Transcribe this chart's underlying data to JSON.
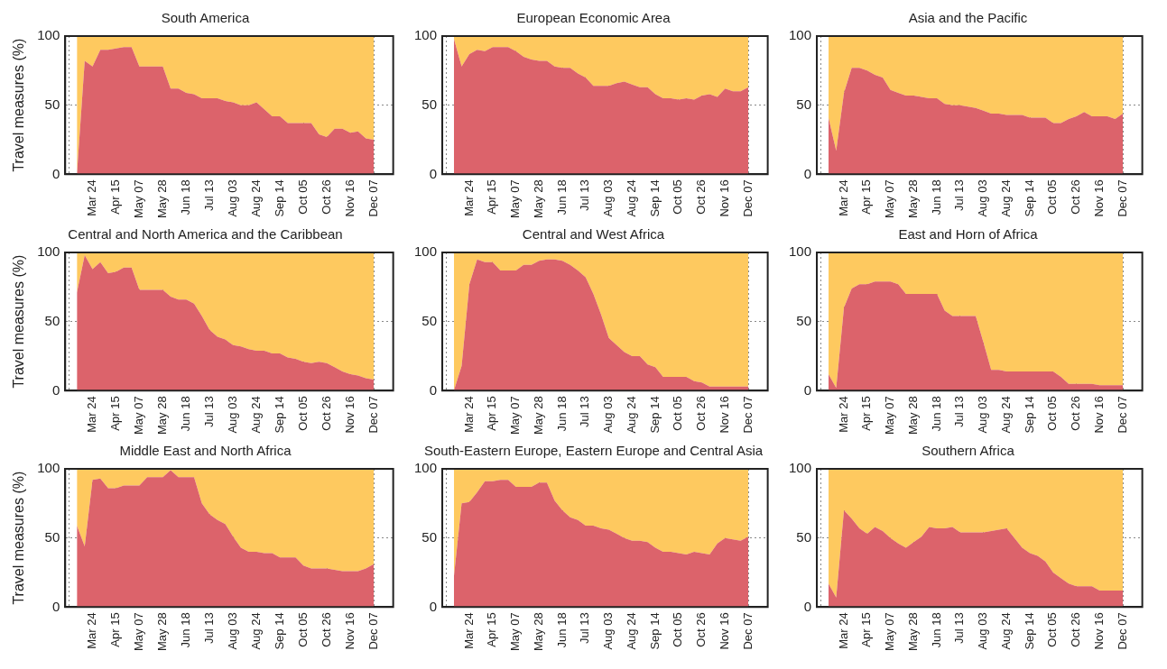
{
  "chart_data": [
    {
      "type": "area",
      "title": "South America",
      "ylabel": "Travel measures (%)",
      "stacked": true,
      "grid": true,
      "ylim": [
        0,
        100
      ],
      "yticks": [
        0,
        50,
        100
      ],
      "categories": [
        null,
        null,
        null,
        "Mar 24",
        null,
        null,
        "Apr 15",
        null,
        null,
        "May 07",
        null,
        null,
        "May 28",
        null,
        null,
        "Jun 18",
        null,
        null,
        "Jul 13",
        null,
        null,
        "Aug 03",
        null,
        null,
        "Aug 24",
        null,
        null,
        "Sep 14",
        null,
        null,
        "Oct 05",
        null,
        null,
        "Oct 26",
        null,
        null,
        "Nov 16",
        null,
        null,
        "Dec 07",
        null,
        null
      ],
      "series": [
        {
          "color": "#dc636b",
          "values": [
            null,
            0,
            82,
            78,
            90,
            90,
            91,
            92,
            92,
            78,
            78,
            78,
            78,
            62,
            62,
            59,
            58,
            55,
            55,
            55,
            53,
            52,
            50,
            50,
            52,
            47,
            42,
            42,
            37,
            37,
            37,
            37,
            29,
            27,
            33,
            33,
            30,
            31,
            26,
            25,
            null,
            null
          ]
        },
        {
          "color": "#fec95f",
          "values": [
            null,
            100,
            18,
            22,
            10,
            10,
            9,
            8,
            8,
            22,
            22,
            22,
            22,
            38,
            38,
            41,
            42,
            45,
            45,
            45,
            47,
            48,
            50,
            50,
            48,
            53,
            58,
            58,
            63,
            63,
            63,
            63,
            71,
            73,
            67,
            67,
            70,
            69,
            74,
            75,
            null,
            null
          ]
        }
      ]
    },
    {
      "type": "area",
      "title": "European Economic Area",
      "stacked": true,
      "grid": true,
      "ylim": [
        0,
        100
      ],
      "yticks": [
        0,
        50,
        100
      ],
      "categories": [
        null,
        null,
        null,
        "Mar 24",
        null,
        null,
        "Apr 15",
        null,
        null,
        "May 07",
        null,
        null,
        "May 28",
        null,
        null,
        "Jun 18",
        null,
        null,
        "Jul 13",
        null,
        null,
        "Aug 03",
        null,
        null,
        "Aug 24",
        null,
        null,
        "Sep 14",
        null,
        null,
        "Oct 05",
        null,
        null,
        "Oct 26",
        null,
        null,
        "Nov 16",
        null,
        null,
        "Dec 07",
        null,
        null
      ],
      "series": [
        {
          "color": "#dc636b",
          "values": [
            null,
            98,
            78,
            87,
            90,
            89,
            92,
            92,
            92,
            89,
            85,
            83,
            82,
            82,
            78,
            77,
            77,
            73,
            70,
            64,
            64,
            64,
            66,
            67,
            65,
            63,
            63,
            58,
            55,
            55,
            54,
            55,
            54,
            57,
            58,
            56,
            62,
            60,
            60,
            63,
            null,
            null
          ]
        },
        {
          "color": "#fec95f",
          "values": [
            null,
            2,
            22,
            13,
            10,
            11,
            8,
            8,
            8,
            11,
            15,
            17,
            18,
            18,
            22,
            23,
            23,
            27,
            30,
            36,
            36,
            36,
            34,
            33,
            35,
            37,
            37,
            42,
            45,
            45,
            46,
            45,
            46,
            43,
            42,
            44,
            38,
            40,
            40,
            37,
            null,
            null
          ]
        }
      ]
    },
    {
      "type": "area",
      "title": "Asia and the Pacific",
      "stacked": true,
      "grid": true,
      "ylim": [
        0,
        100
      ],
      "yticks": [
        0,
        50,
        100
      ],
      "categories": [
        null,
        null,
        null,
        "Mar 24",
        null,
        null,
        "Apr 15",
        null,
        null,
        "May 07",
        null,
        null,
        "May 28",
        null,
        null,
        "Jun 18",
        null,
        null,
        "Jul 13",
        null,
        null,
        "Aug 03",
        null,
        null,
        "Aug 24",
        null,
        null,
        "Sep 14",
        null,
        null,
        "Oct 05",
        null,
        null,
        "Oct 26",
        null,
        null,
        "Nov 16",
        null,
        null,
        "Dec 07",
        null,
        null
      ],
      "series": [
        {
          "color": "#dc636b",
          "values": [
            null,
            41,
            17,
            59,
            77,
            77,
            75,
            72,
            70,
            61,
            59,
            57,
            57,
            56,
            55,
            55,
            51,
            50,
            50,
            49,
            48,
            46,
            44,
            44,
            43,
            43,
            43,
            41,
            41,
            41,
            37,
            37,
            40,
            42,
            45,
            42,
            42,
            42,
            40,
            44,
            null,
            null
          ]
        },
        {
          "color": "#fec95f",
          "values": [
            null,
            59,
            83,
            41,
            23,
            23,
            25,
            28,
            30,
            39,
            41,
            43,
            43,
            44,
            45,
            45,
            49,
            50,
            50,
            51,
            52,
            54,
            56,
            56,
            57,
            57,
            57,
            59,
            59,
            59,
            63,
            63,
            60,
            58,
            55,
            58,
            58,
            58,
            60,
            56,
            null,
            null
          ]
        }
      ]
    },
    {
      "type": "area",
      "title": "Central and North America and the Caribbean",
      "ylabel": "Travel measures (%)",
      "stacked": true,
      "grid": true,
      "ylim": [
        0,
        100
      ],
      "yticks": [
        0,
        50,
        100
      ],
      "categories": [
        null,
        null,
        null,
        "Mar 24",
        null,
        null,
        "Apr 15",
        null,
        null,
        "May 07",
        null,
        null,
        "May 28",
        null,
        null,
        "Jun 18",
        null,
        null,
        "Jul 13",
        null,
        null,
        "Aug 03",
        null,
        null,
        "Aug 24",
        null,
        null,
        "Sep 14",
        null,
        null,
        "Oct 05",
        null,
        null,
        "Oct 26",
        null,
        null,
        "Nov 16",
        null,
        null,
        "Dec 07",
        null,
        null
      ],
      "series": [
        {
          "color": "#dc636b",
          "values": [
            null,
            71,
            98,
            88,
            93,
            85,
            86,
            89,
            89,
            73,
            73,
            73,
            73,
            68,
            66,
            66,
            63,
            54,
            44,
            39,
            37,
            33,
            32,
            30,
            29,
            29,
            27,
            27,
            24,
            23,
            21,
            20,
            21,
            20,
            17,
            14,
            12,
            11,
            9,
            8,
            null,
            null
          ]
        },
        {
          "color": "#fec95f",
          "values": [
            null,
            29,
            2,
            12,
            7,
            15,
            14,
            11,
            11,
            27,
            27,
            27,
            27,
            32,
            34,
            34,
            37,
            46,
            56,
            61,
            63,
            67,
            68,
            70,
            71,
            71,
            73,
            73,
            76,
            77,
            79,
            80,
            79,
            80,
            83,
            86,
            88,
            89,
            91,
            92,
            null,
            null
          ]
        }
      ]
    },
    {
      "type": "area",
      "title": "Central and West Africa",
      "stacked": true,
      "grid": true,
      "ylim": [
        0,
        100
      ],
      "yticks": [
        0,
        50,
        100
      ],
      "categories": [
        null,
        null,
        null,
        "Mar 24",
        null,
        null,
        "Apr 15",
        null,
        null,
        "May 07",
        null,
        null,
        "May 28",
        null,
        null,
        "Jun 18",
        null,
        null,
        "Jul 13",
        null,
        null,
        "Aug 03",
        null,
        null,
        "Aug 24",
        null,
        null,
        "Sep 14",
        null,
        null,
        "Oct 05",
        null,
        null,
        "Oct 26",
        null,
        null,
        "Nov 16",
        null,
        null,
        "Dec 07",
        null,
        null
      ],
      "series": [
        {
          "color": "#dc636b",
          "values": [
            null,
            0,
            18,
            77,
            95,
            93,
            93,
            87,
            87,
            87,
            91,
            91,
            94,
            95,
            95,
            94,
            91,
            87,
            82,
            70,
            55,
            38,
            33,
            28,
            25,
            25,
            19,
            17,
            10,
            10,
            10,
            10,
            7,
            6,
            3,
            3,
            3,
            3,
            3,
            3,
            null,
            null
          ]
        },
        {
          "color": "#fec95f",
          "values": [
            null,
            100,
            82,
            23,
            5,
            7,
            7,
            13,
            13,
            13,
            9,
            9,
            6,
            5,
            5,
            6,
            9,
            13,
            18,
            30,
            45,
            62,
            67,
            72,
            75,
            75,
            81,
            83,
            90,
            90,
            90,
            90,
            93,
            94,
            97,
            97,
            97,
            97,
            97,
            97,
            null,
            null
          ]
        }
      ]
    },
    {
      "type": "area",
      "title": "East and Horn of Africa",
      "stacked": true,
      "grid": true,
      "ylim": [
        0,
        100
      ],
      "yticks": [
        0,
        50,
        100
      ],
      "categories": [
        null,
        null,
        null,
        "Mar 24",
        null,
        null,
        "Apr 15",
        null,
        null,
        "May 07",
        null,
        null,
        "May 28",
        null,
        null,
        "Jun 18",
        null,
        null,
        "Jul 13",
        null,
        null,
        "Aug 03",
        null,
        null,
        "Aug 24",
        null,
        null,
        "Sep 14",
        null,
        null,
        "Oct 05",
        null,
        null,
        "Oct 26",
        null,
        null,
        "Nov 16",
        null,
        null,
        "Dec 07",
        null,
        null
      ],
      "series": [
        {
          "color": "#dc636b",
          "values": [
            null,
            12,
            2,
            60,
            74,
            77,
            77,
            79,
            79,
            79,
            77,
            70,
            70,
            70,
            70,
            70,
            58,
            54,
            54,
            54,
            54,
            35,
            15,
            15,
            14,
            14,
            14,
            14,
            14,
            14,
            14,
            10,
            5,
            5,
            5,
            5,
            4,
            4,
            4,
            4,
            null,
            null
          ]
        },
        {
          "color": "#fec95f",
          "values": [
            null,
            88,
            98,
            40,
            26,
            23,
            23,
            21,
            21,
            21,
            23,
            30,
            30,
            30,
            30,
            30,
            42,
            46,
            46,
            46,
            46,
            65,
            85,
            85,
            86,
            86,
            86,
            86,
            86,
            86,
            86,
            90,
            95,
            95,
            95,
            95,
            96,
            96,
            96,
            96,
            null,
            null
          ]
        }
      ]
    },
    {
      "type": "area",
      "title": "Middle East and North Africa",
      "ylabel": "Travel measures (%)",
      "stacked": true,
      "grid": true,
      "ylim": [
        0,
        100
      ],
      "yticks": [
        0,
        50,
        100
      ],
      "categories": [
        null,
        null,
        null,
        "Mar 24",
        null,
        null,
        "Apr 15",
        null,
        null,
        "May 07",
        null,
        null,
        "May 28",
        null,
        null,
        "Jun 18",
        null,
        null,
        "Jul 13",
        null,
        null,
        "Aug 03",
        null,
        null,
        "Aug 24",
        null,
        null,
        "Sep 14",
        null,
        null,
        "Oct 05",
        null,
        null,
        "Oct 26",
        null,
        null,
        "Nov 16",
        null,
        null,
        "Dec 07",
        null,
        null
      ],
      "series": [
        {
          "color": "#dc636b",
          "values": [
            null,
            59,
            44,
            92,
            93,
            86,
            86,
            88,
            88,
            88,
            94,
            94,
            94,
            99,
            94,
            94,
            94,
            75,
            67,
            63,
            60,
            51,
            43,
            40,
            40,
            39,
            39,
            36,
            36,
            36,
            30,
            28,
            28,
            28,
            27,
            26,
            26,
            26,
            28,
            31,
            null,
            null
          ]
        },
        {
          "color": "#fec95f",
          "values": [
            null,
            41,
            56,
            8,
            7,
            14,
            14,
            12,
            12,
            12,
            6,
            6,
            6,
            1,
            6,
            6,
            6,
            25,
            33,
            37,
            40,
            49,
            57,
            60,
            60,
            61,
            61,
            64,
            64,
            64,
            70,
            72,
            72,
            72,
            73,
            74,
            74,
            74,
            72,
            69,
            null,
            null
          ]
        }
      ]
    },
    {
      "type": "area",
      "title": "South-Eastern Europe, Eastern Europe and Central Asia",
      "stacked": true,
      "grid": true,
      "ylim": [
        0,
        100
      ],
      "yticks": [
        0,
        50,
        100
      ],
      "categories": [
        null,
        null,
        null,
        "Mar 24",
        null,
        null,
        "Apr 15",
        null,
        null,
        "May 07",
        null,
        null,
        "May 28",
        null,
        null,
        "Jun 18",
        null,
        null,
        "Jul 13",
        null,
        null,
        "Aug 03",
        null,
        null,
        "Aug 24",
        null,
        null,
        "Sep 14",
        null,
        null,
        "Oct 05",
        null,
        null,
        "Oct 26",
        null,
        null,
        "Nov 16",
        null,
        null,
        "Dec 07",
        null,
        null
      ],
      "series": [
        {
          "color": "#dc636b",
          "values": [
            null,
            22,
            75,
            76,
            83,
            91,
            91,
            92,
            92,
            87,
            87,
            87,
            90,
            90,
            77,
            70,
            65,
            63,
            59,
            59,
            57,
            56,
            53,
            50,
            48,
            48,
            47,
            43,
            40,
            40,
            39,
            38,
            40,
            39,
            38,
            46,
            50,
            49,
            48,
            51,
            null,
            null
          ]
        },
        {
          "color": "#fec95f",
          "values": [
            null,
            78,
            25,
            24,
            17,
            9,
            9,
            8,
            8,
            13,
            13,
            13,
            10,
            10,
            23,
            30,
            35,
            37,
            41,
            41,
            43,
            44,
            47,
            50,
            52,
            52,
            53,
            57,
            60,
            60,
            61,
            62,
            60,
            61,
            62,
            54,
            50,
            51,
            52,
            49,
            null,
            null
          ]
        }
      ]
    },
    {
      "type": "area",
      "title": "Southern Africa",
      "stacked": true,
      "grid": true,
      "ylim": [
        0,
        100
      ],
      "yticks": [
        0,
        50,
        100
      ],
      "categories": [
        null,
        null,
        null,
        "Mar 24",
        null,
        null,
        "Apr 15",
        null,
        null,
        "May 07",
        null,
        null,
        "May 28",
        null,
        null,
        "Jun 18",
        null,
        null,
        "Jul 13",
        null,
        null,
        "Aug 03",
        null,
        null,
        "Aug 24",
        null,
        null,
        "Sep 14",
        null,
        null,
        "Oct 05",
        null,
        null,
        "Oct 26",
        null,
        null,
        "Nov 16",
        null,
        null,
        "Dec 07",
        null,
        null
      ],
      "series": [
        {
          "color": "#dc636b",
          "values": [
            null,
            17,
            7,
            70,
            64,
            57,
            53,
            58,
            55,
            50,
            46,
            43,
            47,
            51,
            58,
            57,
            57,
            58,
            54,
            54,
            54,
            54,
            55,
            56,
            57,
            50,
            43,
            39,
            37,
            33,
            25,
            21,
            17,
            15,
            15,
            15,
            12,
            12,
            12,
            12,
            null,
            null
          ]
        },
        {
          "color": "#fec95f",
          "values": [
            null,
            83,
            93,
            30,
            36,
            43,
            47,
            42,
            45,
            50,
            54,
            57,
            53,
            49,
            42,
            43,
            43,
            42,
            46,
            46,
            46,
            46,
            45,
            44,
            43,
            50,
            57,
            61,
            63,
            67,
            75,
            79,
            83,
            85,
            85,
            85,
            88,
            88,
            88,
            88,
            null,
            null
          ]
        }
      ]
    }
  ]
}
